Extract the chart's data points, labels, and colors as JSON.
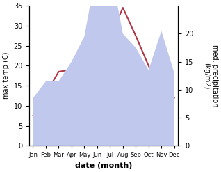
{
  "months": [
    "Jan",
    "Feb",
    "Mar",
    "Apr",
    "May",
    "Jun",
    "Jul",
    "Aug",
    "Sep",
    "Oct",
    "Nov",
    "Dec"
  ],
  "max_temp": [
    7.5,
    13.0,
    18.5,
    19.0,
    24.5,
    29.0,
    27.0,
    34.5,
    27.5,
    20.0,
    13.0,
    12.0
  ],
  "precipitation": [
    8.5,
    11.5,
    11.5,
    15.0,
    19.5,
    32.0,
    32.0,
    20.0,
    17.5,
    13.5,
    20.5,
    13.0
  ],
  "temp_color": "#b03545",
  "precip_fill_color": "#c0c8ee",
  "temp_ylim": [
    0,
    35
  ],
  "precip_ylim": [
    0,
    25
  ],
  "right_ylim": [
    0,
    20
  ],
  "xlabel": "date (month)",
  "ylabel_left": "max temp (C)",
  "ylabel_right": "med. precipitation\n(kg/m2)",
  "temp_yticks": [
    0,
    5,
    10,
    15,
    20,
    25,
    30,
    35
  ],
  "precip_yticks": [
    0,
    5,
    10,
    15,
    20
  ],
  "background_color": "#ffffff"
}
